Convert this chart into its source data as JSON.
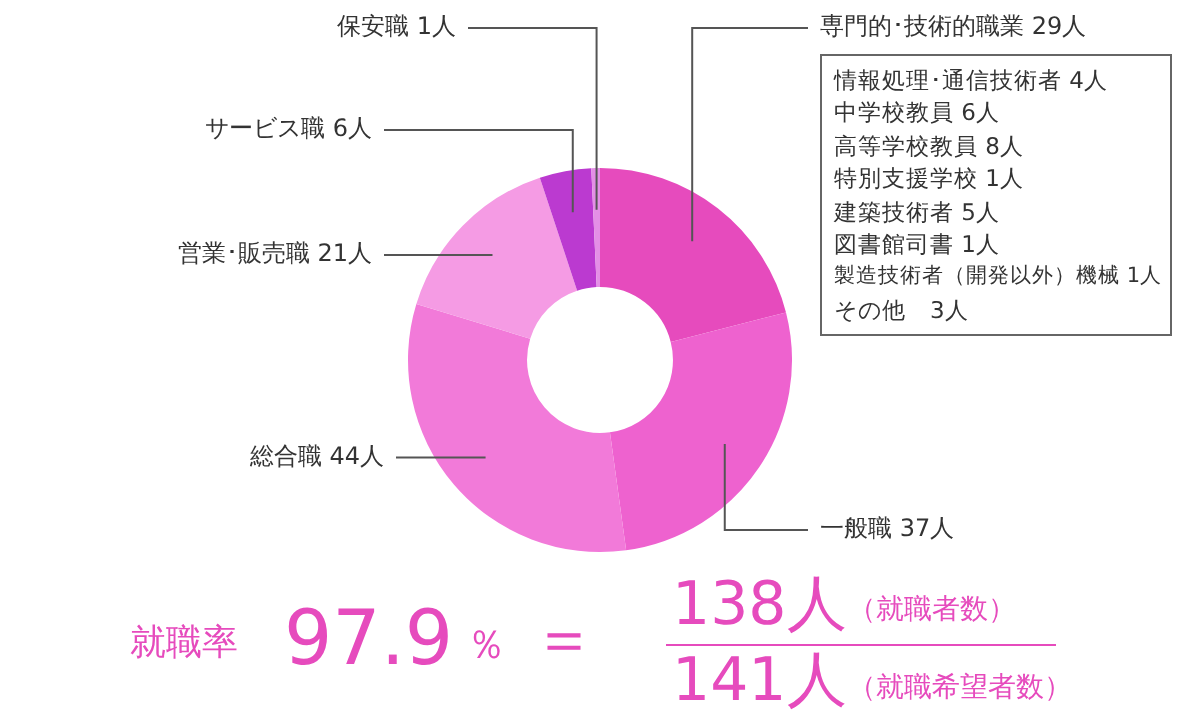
{
  "chart_data": {
    "type": "donut",
    "categories": [
      "専門的･技術的職業",
      "一般職",
      "総合職",
      "営業･販売職",
      "サービス職",
      "保安職"
    ],
    "values": [
      29,
      37,
      44,
      21,
      6,
      1
    ],
    "value_labels": [
      "29人",
      "37人",
      "44人",
      "21人",
      "6人",
      "1人"
    ],
    "colors": [
      "#e64bbd",
      "#ee62cf",
      "#f27ad9",
      "#f59be4",
      "#bb3ad0",
      "#e48fe6"
    ],
    "legend": false,
    "annotations": [
      "情報処理･通信技術者 4人",
      "中学校教員 6人",
      "高等学校教員 8人",
      "特別支援学校 1人",
      "建築技術者 5人",
      "図書館司書 1人",
      "製造技術者（開発以外）機械 1人",
      "その他　3人",
      "就職率",
      "97.9",
      "％",
      "＝",
      "138人",
      "（就職者数）",
      "141人",
      "（就職希望者数）"
    ]
  }
}
